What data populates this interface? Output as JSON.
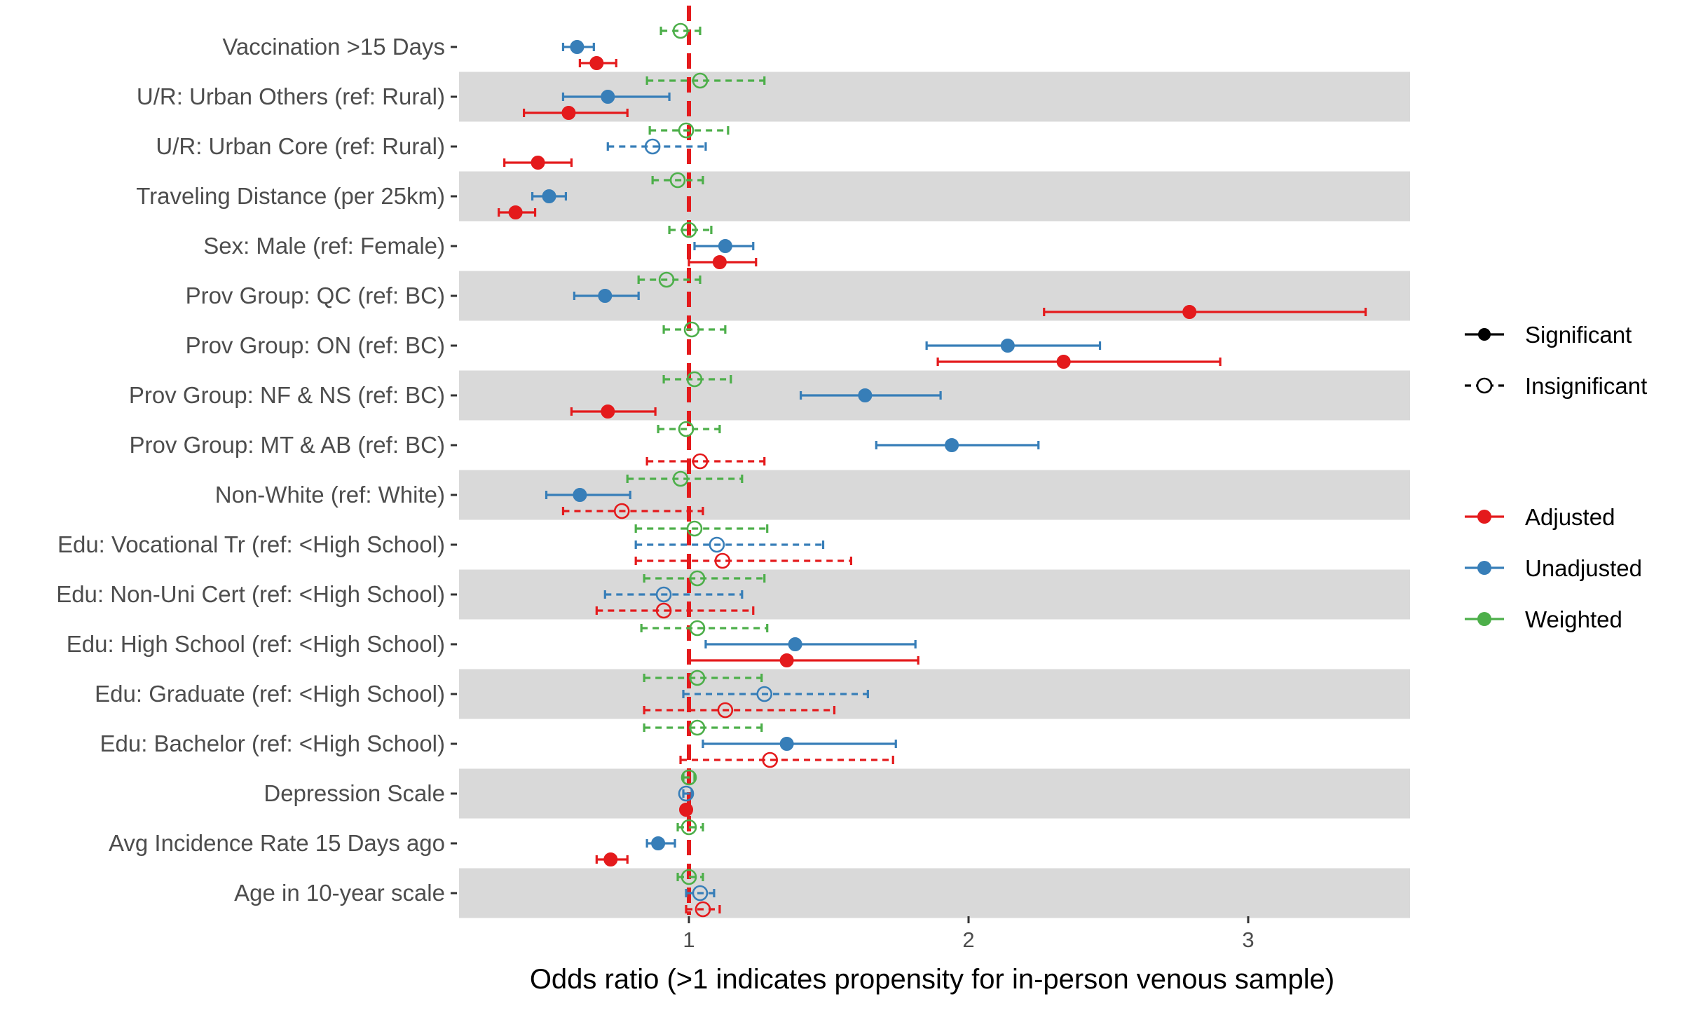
{
  "chart_data": {
    "type": "forest",
    "title": "",
    "xlabel": "Odds ratio (>1 indicates propensity for in-person venous sample)",
    "ylabel": "",
    "xlim": [
      0.18,
      3.58
    ],
    "x_ticks": [
      1,
      2,
      3
    ],
    "x_tick_labels": [
      "1",
      "2",
      "3"
    ],
    "reference_line": 1,
    "grid": false,
    "row_band_fill": "#d9d9d9",
    "legend_position": "right",
    "legend_significance": {
      "items": [
        {
          "label": "Significant",
          "style": "solid",
          "marker": "filled"
        },
        {
          "label": "Insignificant",
          "style": "dashed",
          "marker": "open"
        }
      ]
    },
    "legend_series": {
      "items": [
        {
          "label": "Adjusted",
          "color": "#e41a1c"
        },
        {
          "label": "Unadjusted",
          "color": "#377eb8"
        },
        {
          "label": "Weighted",
          "color": "#4daf4a"
        }
      ]
    },
    "colors": {
      "Adjusted": "#e41a1c",
      "Unadjusted": "#377eb8",
      "Weighted": "#4daf4a",
      "reference": "#e41a1c"
    },
    "rows": [
      {
        "label": "Vaccination >15 Days",
        "estimates": [
          {
            "model": "Weighted",
            "or": 0.97,
            "lo": 0.9,
            "hi": 1.04,
            "significant": false
          },
          {
            "model": "Unadjusted",
            "or": 0.6,
            "lo": 0.55,
            "hi": 0.66,
            "significant": true
          },
          {
            "model": "Adjusted",
            "or": 0.67,
            "lo": 0.61,
            "hi": 0.74,
            "significant": true
          }
        ]
      },
      {
        "label": "U/R: Urban Others (ref: Rural)",
        "estimates": [
          {
            "model": "Weighted",
            "or": 1.04,
            "lo": 0.85,
            "hi": 1.27,
            "significant": false
          },
          {
            "model": "Unadjusted",
            "or": 0.71,
            "lo": 0.55,
            "hi": 0.93,
            "significant": true
          },
          {
            "model": "Adjusted",
            "or": 0.57,
            "lo": 0.41,
            "hi": 0.78,
            "significant": true
          }
        ]
      },
      {
        "label": "U/R: Urban Core (ref: Rural)",
        "estimates": [
          {
            "model": "Weighted",
            "or": 0.99,
            "lo": 0.86,
            "hi": 1.14,
            "significant": false
          },
          {
            "model": "Unadjusted",
            "or": 0.87,
            "lo": 0.71,
            "hi": 1.06,
            "significant": false
          },
          {
            "model": "Adjusted",
            "or": 0.46,
            "lo": 0.34,
            "hi": 0.58,
            "significant": true
          }
        ]
      },
      {
        "label": "Traveling Distance (per 25km)",
        "estimates": [
          {
            "model": "Weighted",
            "or": 0.96,
            "lo": 0.87,
            "hi": 1.05,
            "significant": false
          },
          {
            "model": "Unadjusted",
            "or": 0.5,
            "lo": 0.44,
            "hi": 0.56,
            "significant": true
          },
          {
            "model": "Adjusted",
            "or": 0.38,
            "lo": 0.32,
            "hi": 0.45,
            "significant": true
          }
        ]
      },
      {
        "label": "Sex: Male (ref: Female)",
        "estimates": [
          {
            "model": "Weighted",
            "or": 1.0,
            "lo": 0.93,
            "hi": 1.08,
            "significant": false
          },
          {
            "model": "Unadjusted",
            "or": 1.13,
            "lo": 1.02,
            "hi": 1.23,
            "significant": true
          },
          {
            "model": "Adjusted",
            "or": 1.11,
            "lo": 1.0,
            "hi": 1.24,
            "significant": true
          }
        ]
      },
      {
        "label": "Prov Group: QC (ref: BC)",
        "estimates": [
          {
            "model": "Weighted",
            "or": 0.92,
            "lo": 0.82,
            "hi": 1.04,
            "significant": false
          },
          {
            "model": "Unadjusted",
            "or": 0.7,
            "lo": 0.59,
            "hi": 0.82,
            "significant": true
          },
          {
            "model": "Adjusted",
            "or": 2.79,
            "lo": 2.27,
            "hi": 3.42,
            "significant": true
          }
        ]
      },
      {
        "label": "Prov Group: ON (ref: BC)",
        "estimates": [
          {
            "model": "Weighted",
            "or": 1.01,
            "lo": 0.91,
            "hi": 1.13,
            "significant": false
          },
          {
            "model": "Unadjusted",
            "or": 2.14,
            "lo": 1.85,
            "hi": 2.47,
            "significant": true
          },
          {
            "model": "Adjusted",
            "or": 2.34,
            "lo": 1.89,
            "hi": 2.9,
            "significant": true
          }
        ]
      },
      {
        "label": "Prov Group: NF & NS (ref: BC)",
        "estimates": [
          {
            "model": "Weighted",
            "or": 1.02,
            "lo": 0.91,
            "hi": 1.15,
            "significant": false
          },
          {
            "model": "Unadjusted",
            "or": 1.63,
            "lo": 1.4,
            "hi": 1.9,
            "significant": true
          },
          {
            "model": "Adjusted",
            "or": 0.71,
            "lo": 0.58,
            "hi": 0.88,
            "significant": true
          }
        ]
      },
      {
        "label": "Prov Group: MT & AB (ref: BC)",
        "estimates": [
          {
            "model": "Weighted",
            "or": 0.99,
            "lo": 0.89,
            "hi": 1.11,
            "significant": false
          },
          {
            "model": "Unadjusted",
            "or": 1.94,
            "lo": 1.67,
            "hi": 2.25,
            "significant": true
          },
          {
            "model": "Adjusted",
            "or": 1.04,
            "lo": 0.85,
            "hi": 1.27,
            "significant": false
          }
        ]
      },
      {
        "label": "Non-White (ref: White)",
        "estimates": [
          {
            "model": "Weighted",
            "or": 0.97,
            "lo": 0.78,
            "hi": 1.19,
            "significant": false
          },
          {
            "model": "Unadjusted",
            "or": 0.61,
            "lo": 0.49,
            "hi": 0.79,
            "significant": true
          },
          {
            "model": "Adjusted",
            "or": 0.76,
            "lo": 0.55,
            "hi": 1.05,
            "significant": false
          }
        ]
      },
      {
        "label": "Edu: Vocational Tr (ref: <High School)",
        "estimates": [
          {
            "model": "Weighted",
            "or": 1.02,
            "lo": 0.81,
            "hi": 1.28,
            "significant": false
          },
          {
            "model": "Unadjusted",
            "or": 1.1,
            "lo": 0.81,
            "hi": 1.48,
            "significant": false
          },
          {
            "model": "Adjusted",
            "or": 1.12,
            "lo": 0.81,
            "hi": 1.58,
            "significant": false
          }
        ]
      },
      {
        "label": "Edu: Non-Uni Cert (ref: <High School)",
        "estimates": [
          {
            "model": "Weighted",
            "or": 1.03,
            "lo": 0.84,
            "hi": 1.27,
            "significant": false
          },
          {
            "model": "Unadjusted",
            "or": 0.91,
            "lo": 0.7,
            "hi": 1.19,
            "significant": false
          },
          {
            "model": "Adjusted",
            "or": 0.91,
            "lo": 0.67,
            "hi": 1.23,
            "significant": false
          }
        ]
      },
      {
        "label": "Edu: High School (ref: <High School)",
        "estimates": [
          {
            "model": "Weighted",
            "or": 1.03,
            "lo": 0.83,
            "hi": 1.28,
            "significant": false
          },
          {
            "model": "Unadjusted",
            "or": 1.38,
            "lo": 1.06,
            "hi": 1.81,
            "significant": true
          },
          {
            "model": "Adjusted",
            "or": 1.35,
            "lo": 1.0,
            "hi": 1.82,
            "significant": true
          }
        ]
      },
      {
        "label": "Edu: Graduate (ref: <High School)",
        "estimates": [
          {
            "model": "Weighted",
            "or": 1.03,
            "lo": 0.84,
            "hi": 1.26,
            "significant": false
          },
          {
            "model": "Unadjusted",
            "or": 1.27,
            "lo": 0.98,
            "hi": 1.64,
            "significant": false
          },
          {
            "model": "Adjusted",
            "or": 1.13,
            "lo": 0.84,
            "hi": 1.52,
            "significant": false
          }
        ]
      },
      {
        "label": "Edu: Bachelor (ref: <High School)",
        "estimates": [
          {
            "model": "Weighted",
            "or": 1.03,
            "lo": 0.84,
            "hi": 1.26,
            "significant": false
          },
          {
            "model": "Unadjusted",
            "or": 1.35,
            "lo": 1.05,
            "hi": 1.74,
            "significant": true
          },
          {
            "model": "Adjusted",
            "or": 1.29,
            "lo": 0.97,
            "hi": 1.73,
            "significant": false
          }
        ]
      },
      {
        "label": "Depression Scale",
        "estimates": [
          {
            "model": "Weighted",
            "or": 1.0,
            "lo": 0.98,
            "hi": 1.02,
            "significant": false
          },
          {
            "model": "Unadjusted",
            "or": 0.99,
            "lo": 0.98,
            "hi": 1.01,
            "significant": false
          },
          {
            "model": "Adjusted",
            "or": 0.99,
            "lo": 0.98,
            "hi": 1.0,
            "significant": true
          }
        ]
      },
      {
        "label": "Avg Incidence Rate 15 Days ago",
        "estimates": [
          {
            "model": "Weighted",
            "or": 1.0,
            "lo": 0.96,
            "hi": 1.05,
            "significant": false
          },
          {
            "model": "Unadjusted",
            "or": 0.89,
            "lo": 0.85,
            "hi": 0.95,
            "significant": true
          },
          {
            "model": "Adjusted",
            "or": 0.72,
            "lo": 0.67,
            "hi": 0.78,
            "significant": true
          }
        ]
      },
      {
        "label": "Age in 10-year scale",
        "estimates": [
          {
            "model": "Weighted",
            "or": 1.0,
            "lo": 0.96,
            "hi": 1.05,
            "significant": false
          },
          {
            "model": "Unadjusted",
            "or": 1.04,
            "lo": 0.99,
            "hi": 1.09,
            "significant": false
          },
          {
            "model": "Adjusted",
            "or": 1.05,
            "lo": 0.99,
            "hi": 1.11,
            "significant": false
          }
        ]
      }
    ]
  }
}
